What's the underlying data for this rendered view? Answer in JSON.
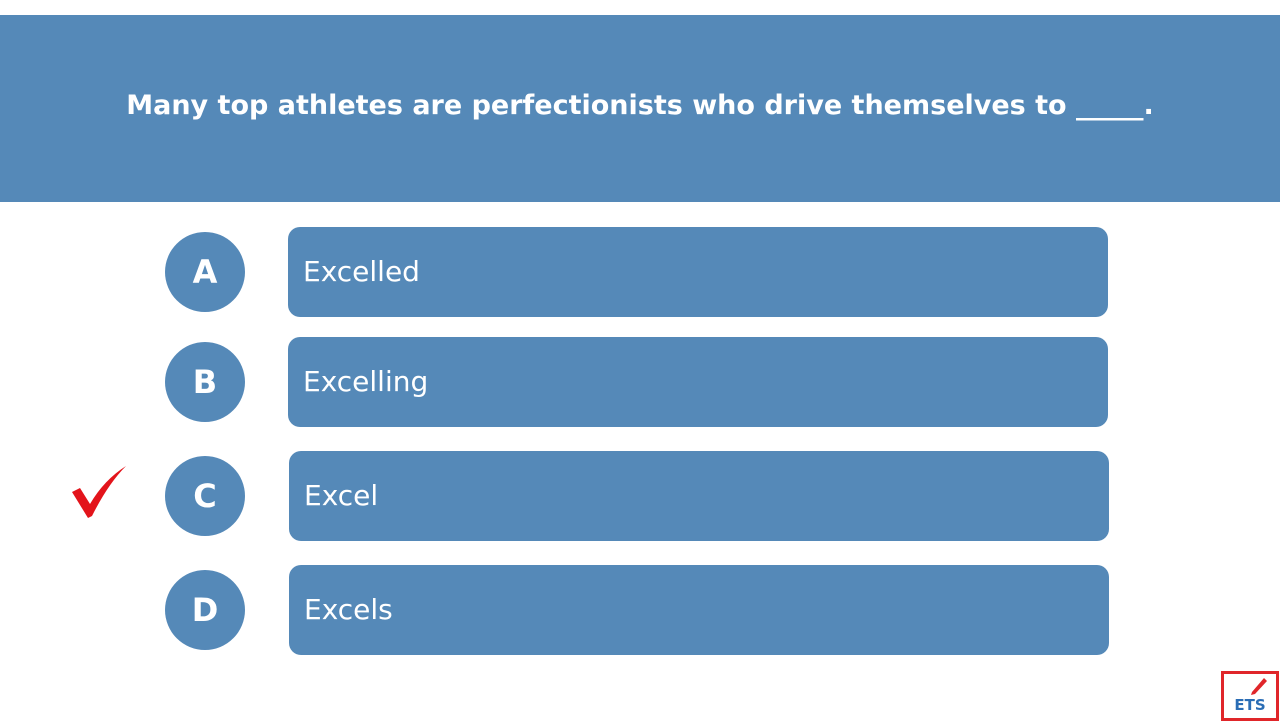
{
  "question": "Many top athletes are perfectionists who drive themselves to _____.",
  "options": [
    {
      "letter": "A",
      "text": "Excelled"
    },
    {
      "letter": "B",
      "text": "Excelling"
    },
    {
      "letter": "C",
      "text": "Excel"
    },
    {
      "letter": "D",
      "text": "Excels"
    }
  ],
  "logo": "ETS"
}
